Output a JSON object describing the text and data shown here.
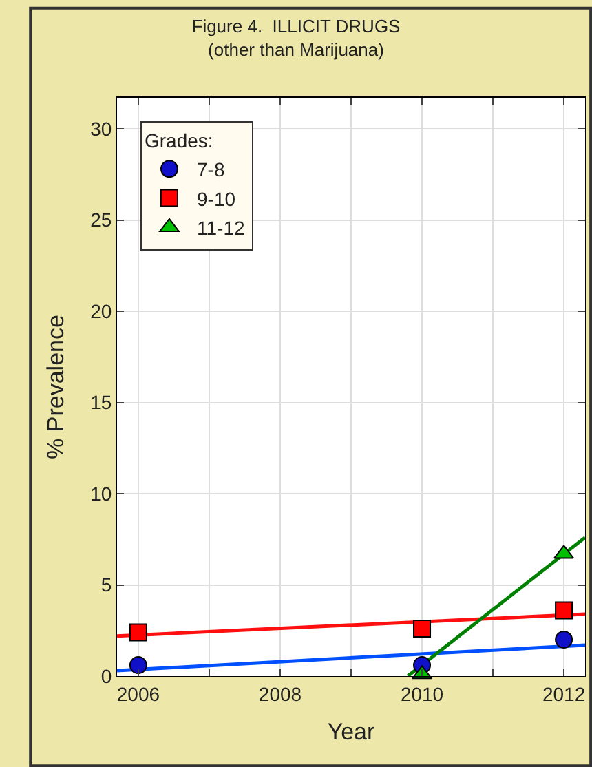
{
  "chart_data": {
    "type": "scatter",
    "title": "Figure 4.  ILLICIT DRUGS",
    "subtitle": "(other than Marijuana)",
    "xlabel": "Year",
    "ylabel": "% Prevalence",
    "legend_title": "Grades:",
    "x": [
      2006,
      2010,
      2012
    ],
    "series": [
      {
        "name": "7-8",
        "color": "#1010c8",
        "values": [
          0.6,
          0.6,
          2.0
        ],
        "marker": "circle"
      },
      {
        "name": "9-10",
        "color": "#ff0000",
        "values": [
          2.4,
          2.6,
          3.6
        ],
        "marker": "square"
      },
      {
        "name": "11-12",
        "color": "#00c000",
        "x": [
          2010,
          2012
        ],
        "values": [
          0.1,
          6.7
        ],
        "marker": "triangle"
      },
      {
        "type": "line",
        "color": "#0050ff",
        "x": [
          2005.7,
          2012.3
        ],
        "values": [
          0.3,
          1.7
        ],
        "marker": "none"
      },
      {
        "type": "line",
        "color": "#ff1010",
        "x": [
          2005.7,
          2012.3
        ],
        "values": [
          2.2,
          3.4
        ],
        "marker": "none"
      },
      {
        "type": "line",
        "color": "#008000",
        "x": [
          2009.8,
          2012.3
        ],
        "values": [
          0,
          7.6
        ],
        "marker": "none"
      }
    ],
    "xlim": [
      2005.7,
      2012.3
    ],
    "xticks": [
      2006,
      {
        "value": 2007,
        "label": null
      },
      2008,
      {
        "value": 2009,
        "label": null
      },
      2010,
      {
        "value": 2011,
        "label": null
      },
      2012
    ],
    "ylim": [
      0,
      31.7
    ],
    "yticks": [
      0,
      5,
      10,
      15,
      20,
      25,
      30
    ],
    "grid": true,
    "legend": "top left"
  }
}
